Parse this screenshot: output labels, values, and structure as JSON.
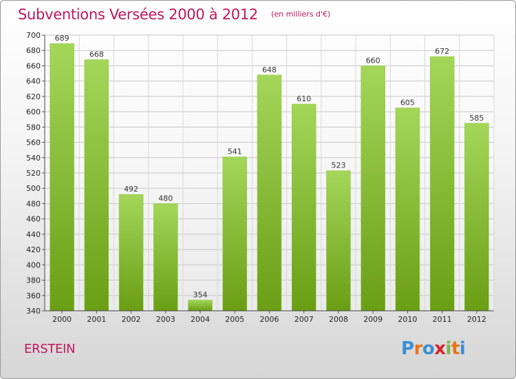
{
  "title": "Subventions Versées 2000 à 2012",
  "unit_note": "(en milliers d'€)",
  "location": "ERSTEIN",
  "brand": {
    "letters": [
      "P",
      "r",
      "o",
      "x",
      "i",
      "t",
      "i"
    ],
    "colors": [
      "#3a8fd4",
      "#e8751a",
      "#3a8fd4",
      "#d8232a",
      "#7ab648",
      "#e8751a",
      "#3a8fd4"
    ]
  },
  "colors": {
    "bar_top": "#a4d65a",
    "bar_bottom": "#6a9e14",
    "title": "#c0165c"
  },
  "chart_data": {
    "type": "bar",
    "categories": [
      "2000",
      "2001",
      "2002",
      "2003",
      "2004",
      "2005",
      "2006",
      "2007",
      "2008",
      "2009",
      "2010",
      "2011",
      "2012"
    ],
    "values": [
      689,
      668,
      492,
      480,
      354,
      541,
      648,
      610,
      523,
      660,
      605,
      672,
      585
    ],
    "ylim": [
      340,
      700
    ],
    "yticks": [
      340,
      360,
      380,
      400,
      420,
      440,
      460,
      480,
      500,
      520,
      540,
      560,
      580,
      600,
      620,
      640,
      660,
      680,
      700
    ],
    "grid": true,
    "data_labels": true
  }
}
